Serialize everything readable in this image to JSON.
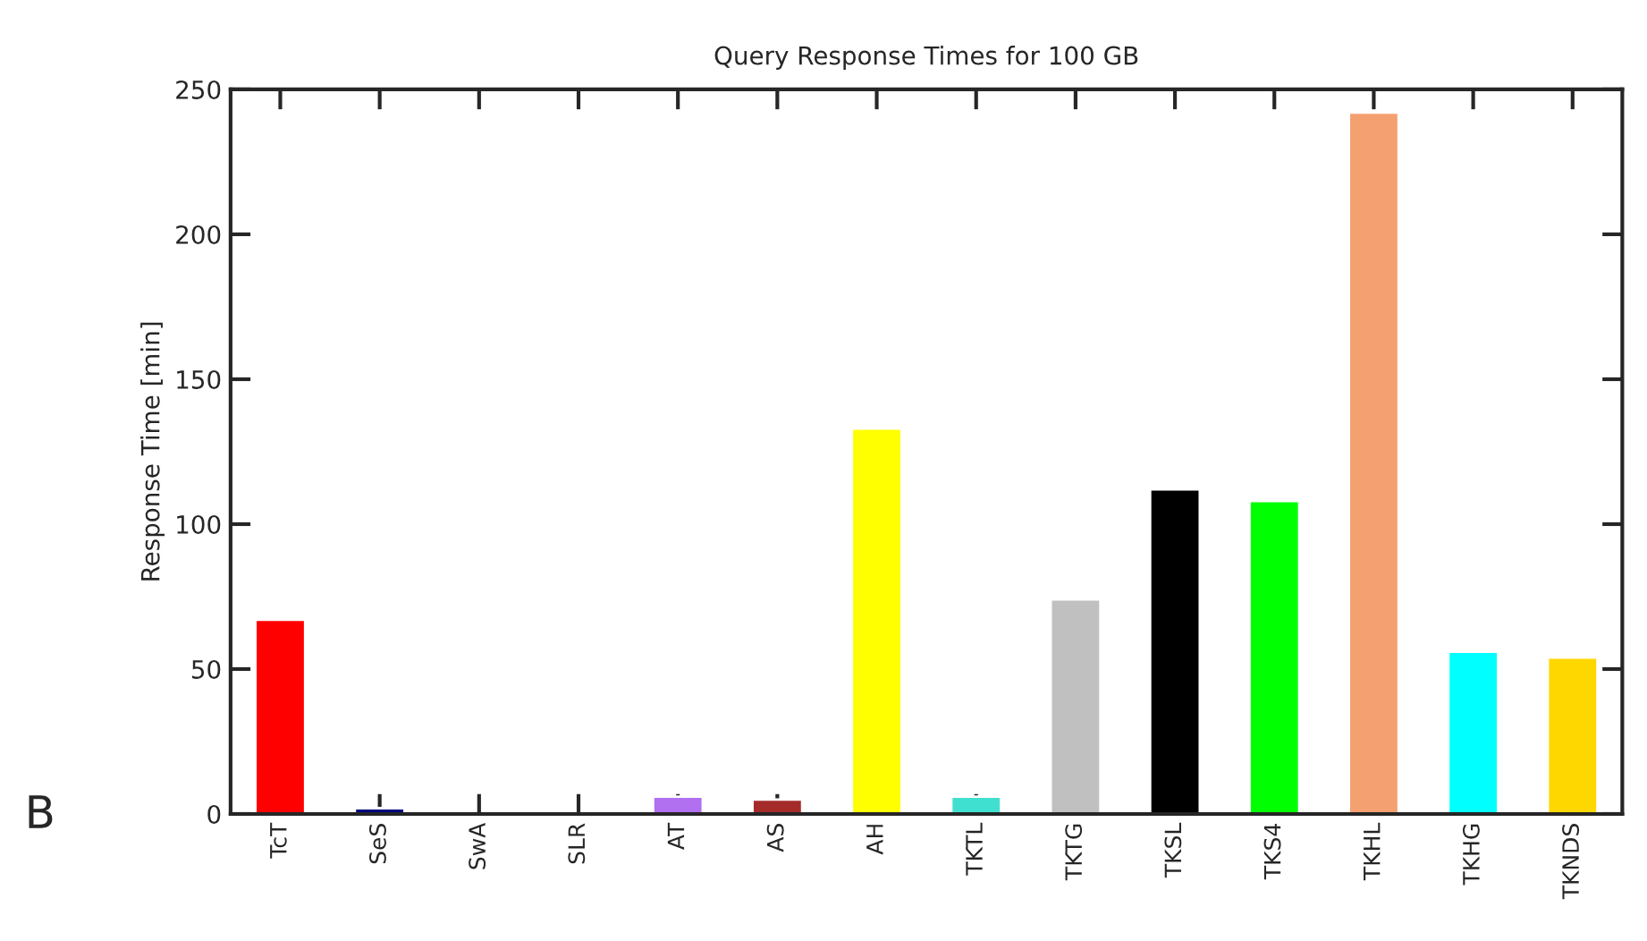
{
  "chart_data": {
    "type": "bar",
    "title": "Query Response Times for 100 GB",
    "ylabel": "Response Time [min]",
    "categories": [
      "TcT",
      "SeS",
      "SwA",
      "SLR",
      "AT",
      "AS",
      "AH",
      "TKTL",
      "TKTG",
      "TKSL",
      "TKS4",
      "TKHL",
      "TKHG",
      "TKNDS"
    ],
    "values": [
      67,
      2,
      null,
      null,
      6,
      5,
      133,
      6,
      74,
      112,
      108,
      242,
      56,
      54
    ],
    "colors": [
      "#ff0000",
      "#000080",
      "#5a5a8c",
      "#8b1a1a",
      "#b070f0",
      "#a52a2a",
      "#ffff00",
      "#40e0d0",
      "#c0c0c0",
      "#000000",
      "#00ff00",
      "#f4a070",
      "#00ffff",
      "#ffd700"
    ],
    "ylim": [
      0,
      250
    ],
    "yticks": [
      0,
      50,
      100,
      150,
      200,
      250
    ],
    "grid": false,
    "annotations": [
      "B"
    ]
  }
}
